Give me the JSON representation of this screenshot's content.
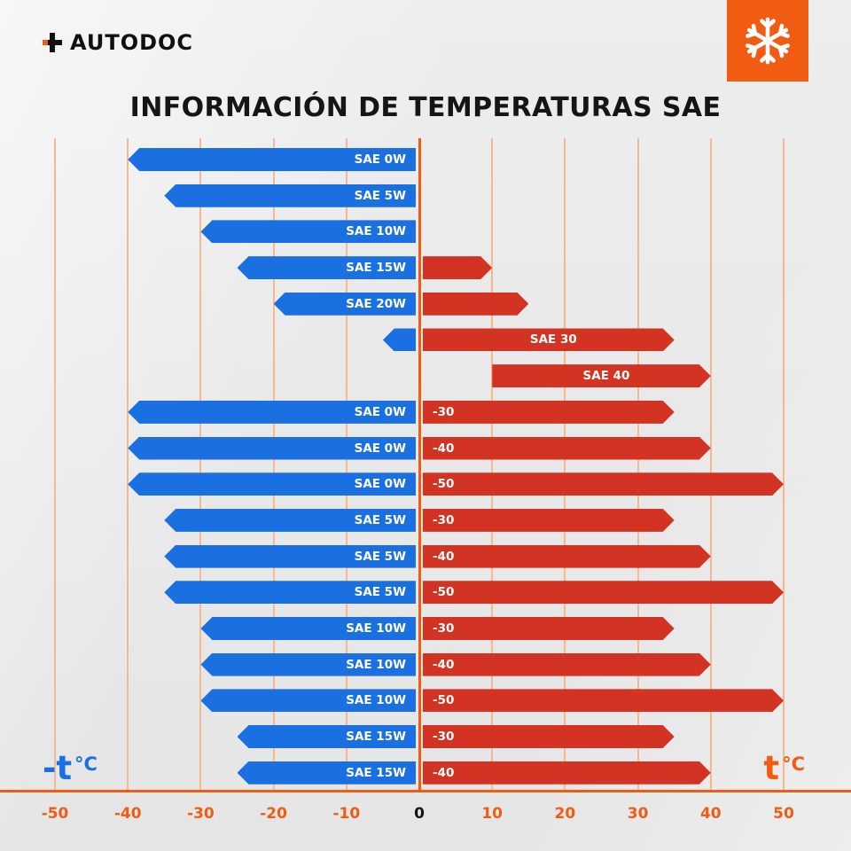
{
  "header": {
    "brand": "AUTODOC",
    "logo_icon": "autodoc-plus-icon",
    "badge_icon": "snowflake-icon"
  },
  "axis_labels": {
    "left_sign": "-t",
    "right_sign": "t",
    "unit": "°C"
  },
  "colors": {
    "cold": "#1b70e1",
    "hot": "#d23322",
    "accent": "#f05c11",
    "grid": "#f6b88e"
  },
  "chart_data": {
    "type": "bar",
    "orientation": "horizontal",
    "title": "INFORMACIÓN DE TEMPERATURAS SAE",
    "unit": "°C",
    "axis": {
      "min": -50,
      "max": 50,
      "step": 10,
      "ticks": [
        -50,
        -40,
        -30,
        -20,
        -10,
        0,
        10,
        20,
        30,
        40,
        50
      ],
      "grid": true,
      "zero_axis_emphasized": true
    },
    "series_legend": {
      "cold": "low temperature range (blue, left of 0)",
      "hot": "high temperature range (red, right of 0)"
    },
    "rows": [
      {
        "cold": {
          "from": -40,
          "to": 0,
          "label": "SAE 0W"
        },
        "hot": null
      },
      {
        "cold": {
          "from": -35,
          "to": 0,
          "label": "SAE 5W"
        },
        "hot": null
      },
      {
        "cold": {
          "from": -30,
          "to": 0,
          "label": "SAE 10W"
        },
        "hot": null
      },
      {
        "cold": {
          "from": -25,
          "to": 0,
          "label": "SAE 15W"
        },
        "hot": {
          "from": 0,
          "to": 10,
          "label": ""
        }
      },
      {
        "cold": {
          "from": -20,
          "to": 0,
          "label": "SAE 20W"
        },
        "hot": {
          "from": 0,
          "to": 15,
          "label": ""
        }
      },
      {
        "cold": {
          "from": -5,
          "to": 0,
          "label": ""
        },
        "hot": {
          "from": 0,
          "to": 35,
          "label": "SAE 30",
          "label_align": "center"
        }
      },
      {
        "cold": null,
        "hot": {
          "from": 10,
          "to": 40,
          "label": "SAE 40",
          "label_align": "center"
        }
      },
      {
        "cold": {
          "from": -40,
          "to": 0,
          "label": "SAE 0W"
        },
        "hot": {
          "from": 0,
          "to": 35,
          "label": "-30"
        }
      },
      {
        "cold": {
          "from": -40,
          "to": 0,
          "label": "SAE 0W"
        },
        "hot": {
          "from": 0,
          "to": 40,
          "label": "-40"
        }
      },
      {
        "cold": {
          "from": -40,
          "to": 0,
          "label": "SAE 0W"
        },
        "hot": {
          "from": 0,
          "to": 50,
          "label": "-50"
        }
      },
      {
        "cold": {
          "from": -35,
          "to": 0,
          "label": "SAE 5W"
        },
        "hot": {
          "from": 0,
          "to": 35,
          "label": "-30"
        }
      },
      {
        "cold": {
          "from": -35,
          "to": 0,
          "label": "SAE 5W"
        },
        "hot": {
          "from": 0,
          "to": 40,
          "label": "-40"
        }
      },
      {
        "cold": {
          "from": -35,
          "to": 0,
          "label": "SAE 5W"
        },
        "hot": {
          "from": 0,
          "to": 50,
          "label": "-50"
        }
      },
      {
        "cold": {
          "from": -30,
          "to": 0,
          "label": "SAE 10W"
        },
        "hot": {
          "from": 0,
          "to": 35,
          "label": "-30"
        }
      },
      {
        "cold": {
          "from": -30,
          "to": 0,
          "label": "SAE 10W"
        },
        "hot": {
          "from": 0,
          "to": 40,
          "label": "-40"
        }
      },
      {
        "cold": {
          "from": -30,
          "to": 0,
          "label": "SAE 10W"
        },
        "hot": {
          "from": 0,
          "to": 50,
          "label": "-50"
        }
      },
      {
        "cold": {
          "from": -25,
          "to": 0,
          "label": "SAE 15W"
        },
        "hot": {
          "from": 0,
          "to": 35,
          "label": "-30"
        }
      },
      {
        "cold": {
          "from": -25,
          "to": 0,
          "label": "SAE 15W"
        },
        "hot": {
          "from": 0,
          "to": 40,
          "label": "-40"
        }
      }
    ]
  }
}
